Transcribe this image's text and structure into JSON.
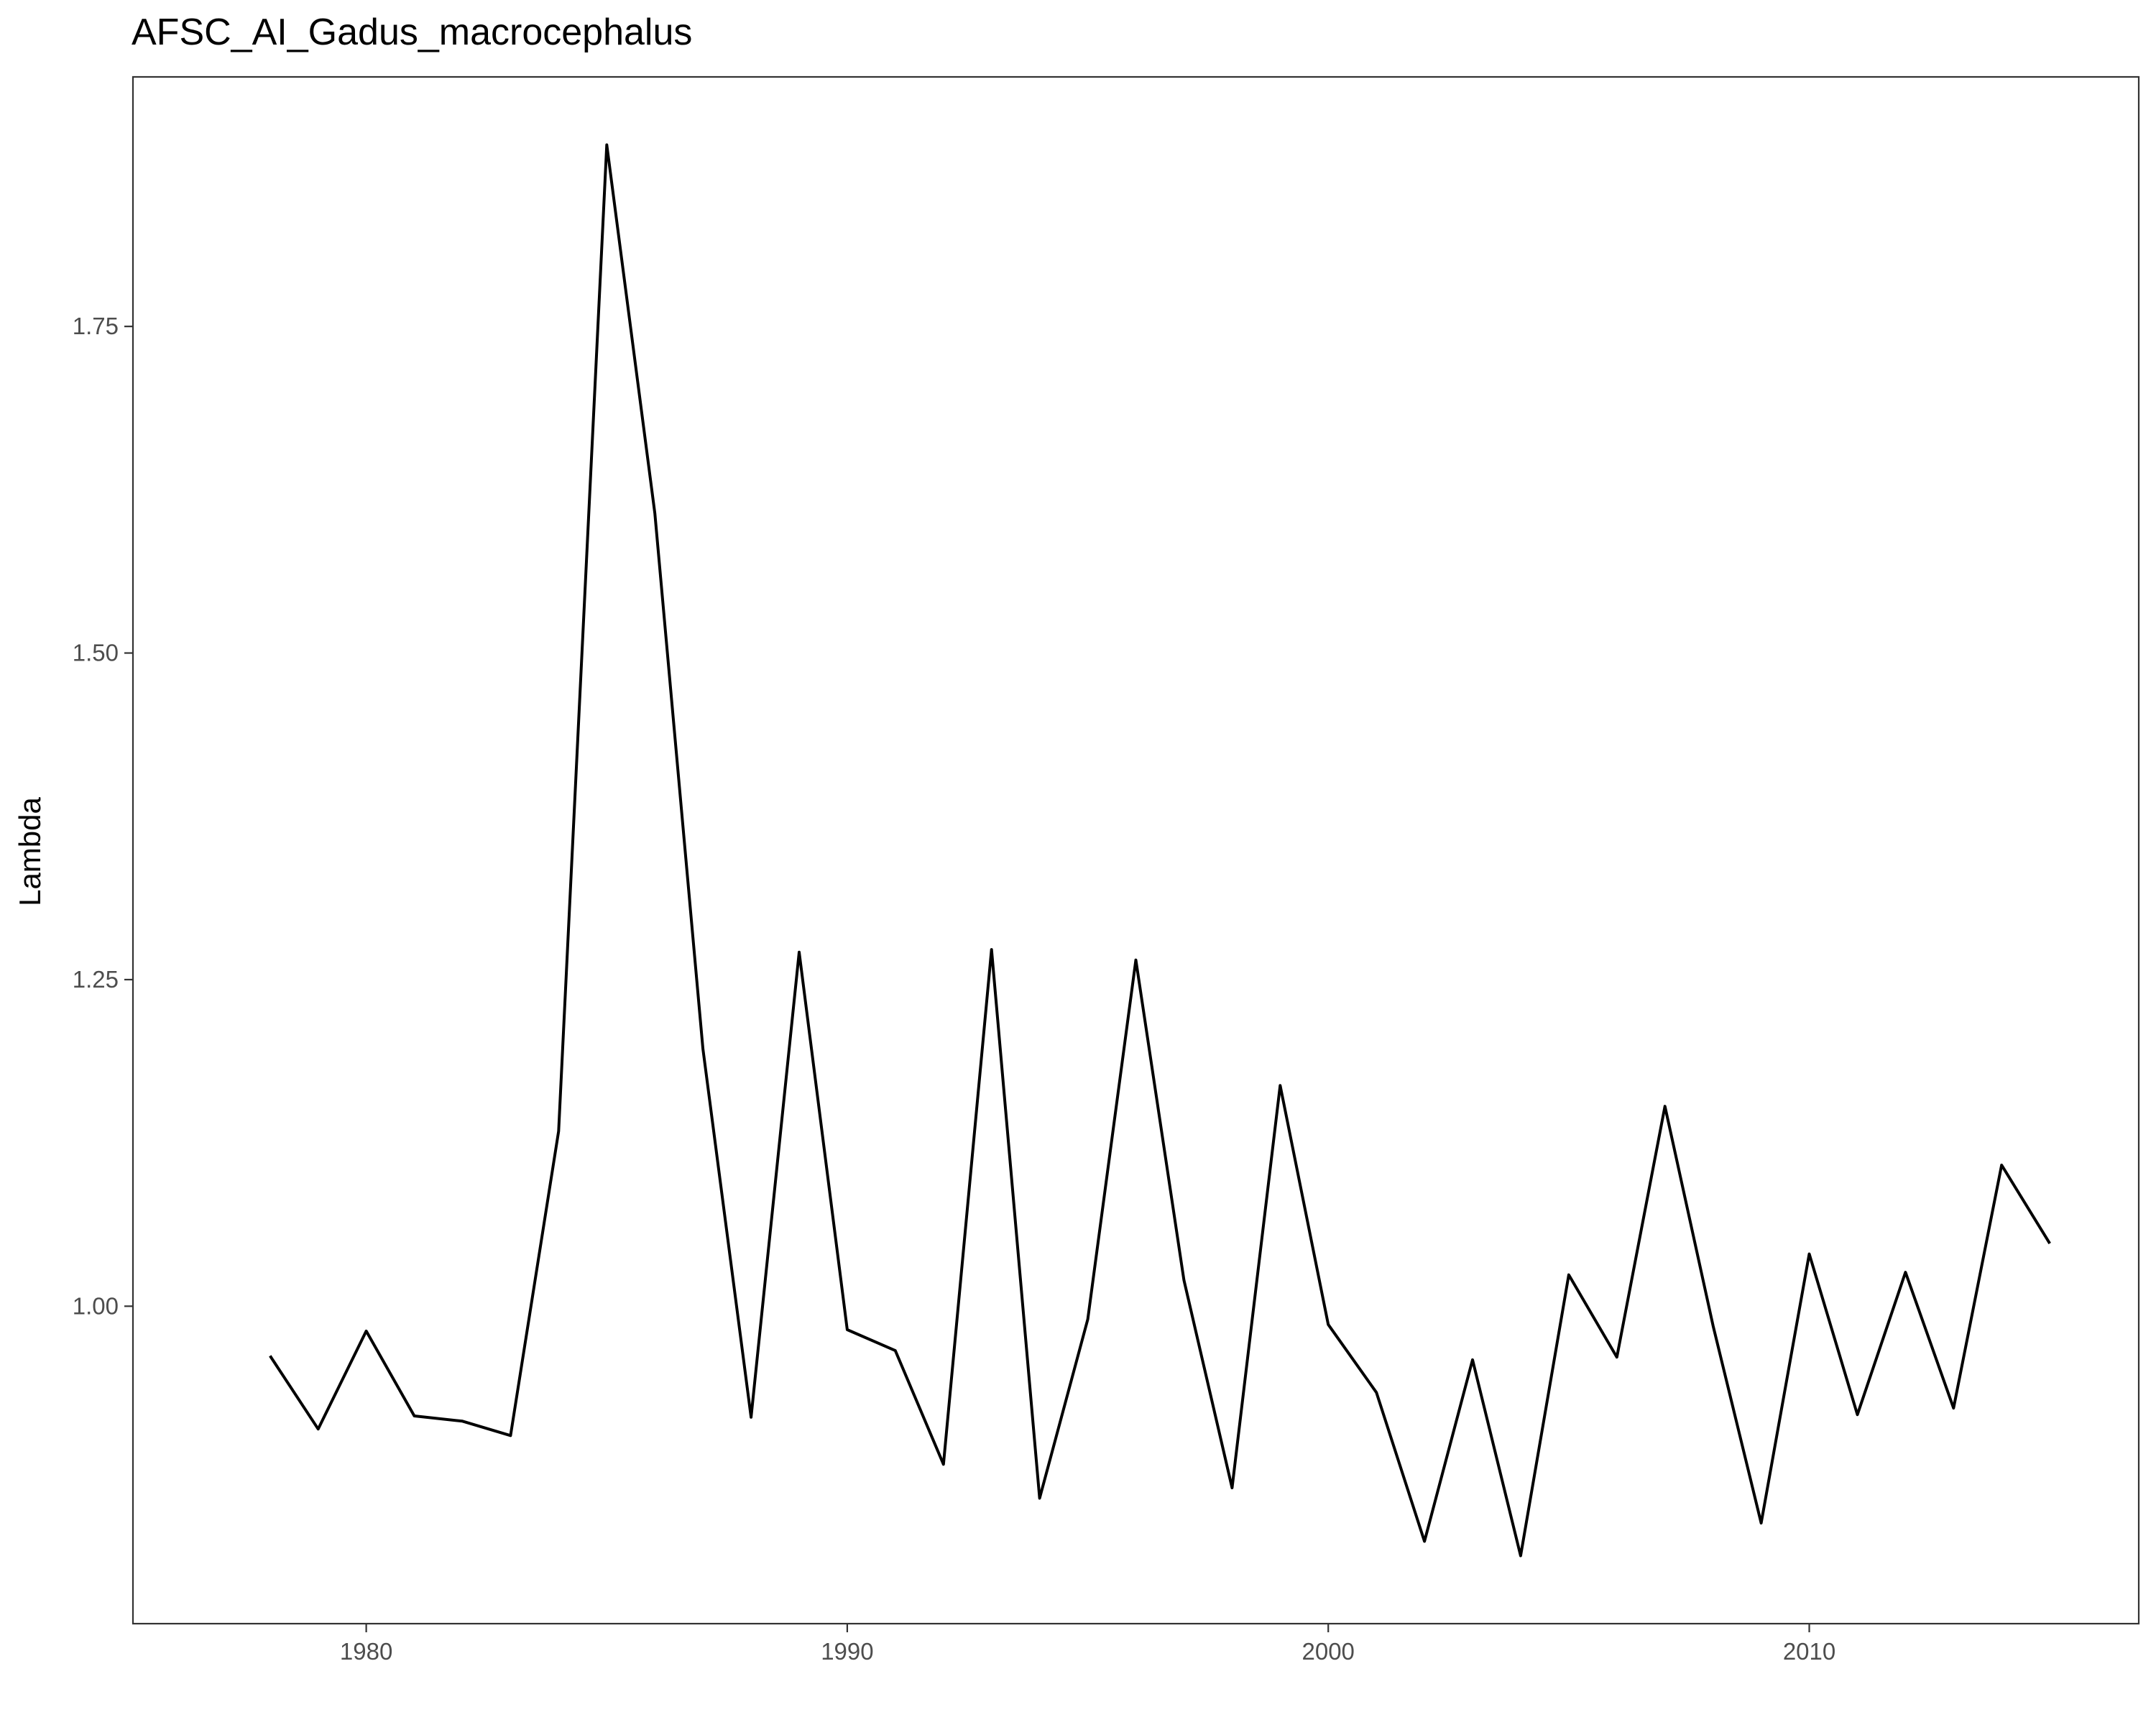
{
  "chart_data": {
    "type": "line",
    "title": "AFSC_AI_Gadus_macrocephalus",
    "xlabel": "",
    "ylabel": "Lambda",
    "x": [
      1978,
      1979,
      1980,
      1981,
      1982,
      1983,
      1984,
      1985,
      1986,
      1987,
      1988,
      1989,
      1990,
      1991,
      1992,
      1993,
      1994,
      1995,
      1996,
      1997,
      1998,
      1999,
      2000,
      2001,
      2002,
      2003,
      2004,
      2005,
      2006,
      2007,
      2008,
      2009,
      2010,
      2011,
      2012,
      2013,
      2014,
      2015
    ],
    "series": [
      {
        "values": [
          0.962,
          0.906,
          0.981,
          0.916,
          0.912,
          0.901,
          1.134,
          1.889,
          1.607,
          1.197,
          0.915,
          1.271,
          0.982,
          0.966,
          0.879,
          1.273,
          0.853,
          0.99,
          1.265,
          1.02,
          0.861,
          1.169,
          0.986,
          0.934,
          0.82,
          0.959,
          0.809,
          1.024,
          0.961,
          1.153,
          0.985,
          0.834,
          1.04,
          0.917,
          1.026,
          0.922,
          1.108,
          1.048
        ],
        "color": "#000000"
      }
    ],
    "xticks": [
      1980,
      1990,
      2000,
      2010
    ],
    "yticks": [
      1.0,
      1.25,
      1.5,
      1.75
    ],
    "ytick_labels": [
      "1.00",
      "1.25",
      "1.50",
      "1.75"
    ],
    "xlim": [
      1975.15,
      2016.85
    ],
    "ylim": [
      0.757,
      1.941
    ],
    "grid": false,
    "legend": "none"
  }
}
